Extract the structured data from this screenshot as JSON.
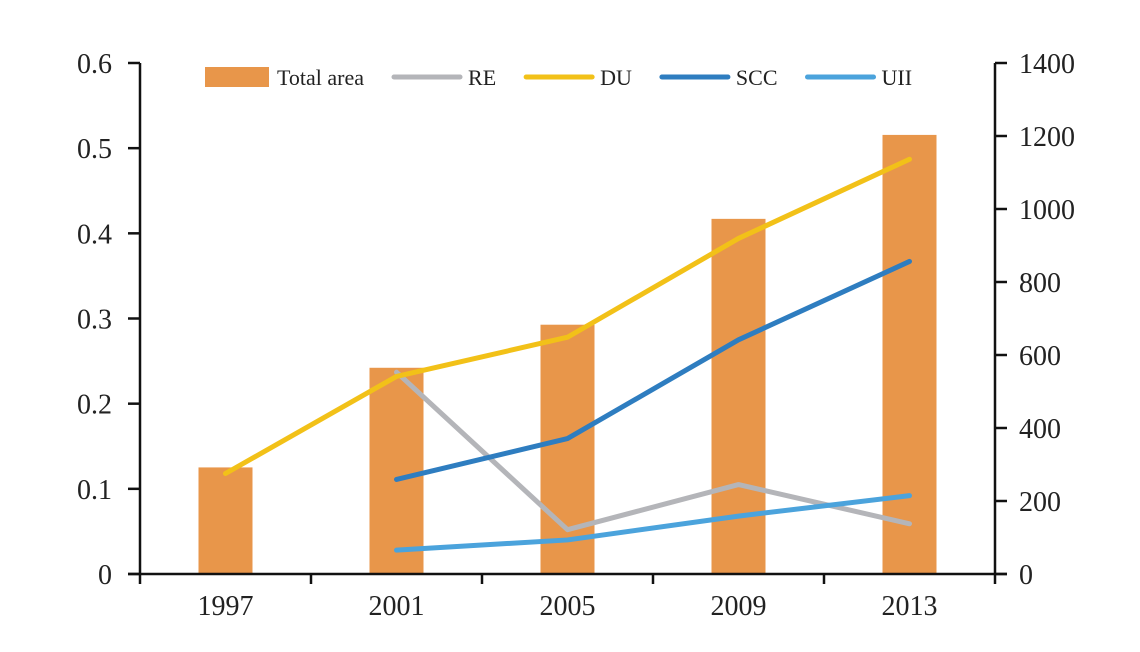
{
  "chart_data": {
    "type": "bar",
    "categories": [
      "1997",
      "2001",
      "2005",
      "2009",
      "2013"
    ],
    "bar_series": {
      "name": "Total area",
      "axis": "right",
      "color": "#E8964A",
      "values": [
        292,
        565,
        683,
        973,
        1203
      ]
    },
    "line_series": [
      {
        "name": "RE",
        "axis": "left",
        "color": "#B4B5B9",
        "values": [
          null,
          0.237,
          0.052,
          0.105,
          0.059
        ]
      },
      {
        "name": "DU",
        "axis": "left",
        "color": "#F2C118",
        "values": [
          0.118,
          0.232,
          0.278,
          0.394,
          0.487
        ]
      },
      {
        "name": "SCC",
        "axis": "left",
        "color": "#2E7DC0",
        "values": [
          null,
          0.111,
          0.159,
          0.275,
          0.367
        ]
      },
      {
        "name": "UII",
        "axis": "left",
        "color": "#4BA3DC",
        "values": [
          null,
          0.028,
          0.04,
          0.068,
          0.092
        ]
      }
    ],
    "y_left": {
      "ylim": [
        0,
        0.6
      ],
      "ticks": [
        0,
        0.1,
        0.2,
        0.3,
        0.4,
        0.5,
        0.6
      ],
      "tick_labels": [
        "0",
        "0.1",
        "0.2",
        "0.3",
        "0.4",
        "0.5",
        "0.6"
      ]
    },
    "y_right": {
      "ylim": [
        0,
        1400
      ],
      "ticks": [
        0,
        200,
        400,
        600,
        800,
        1000,
        1200,
        1400
      ],
      "tick_labels": [
        "0",
        "200",
        "400",
        "600",
        "800",
        "1000",
        "1200",
        "1400"
      ]
    },
    "legend_order": [
      "Total area",
      "RE",
      "DU",
      "SCC",
      "UII"
    ],
    "legend_position": "top",
    "grid": false,
    "title": "",
    "xlabel": "",
    "ylabel": ""
  }
}
